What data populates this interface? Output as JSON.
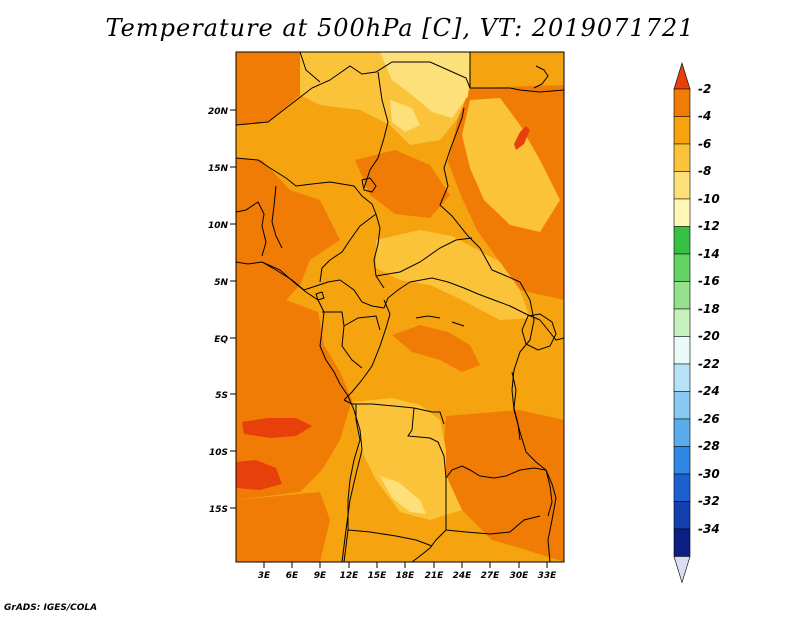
{
  "title": "Temperature at 500hPa [C], VT: 2019071721",
  "footer": "GrADS: IGES/COLA",
  "map": {
    "lat_labels": [
      "20N",
      "15N",
      "10N",
      "5N",
      "EQ",
      "5S",
      "10S",
      "15S"
    ],
    "lon_labels": [
      "3E",
      "6E",
      "9E",
      "12E",
      "15E",
      "18E",
      "21E",
      "24E",
      "27E",
      "30E",
      "33E"
    ]
  },
  "colorbar": {
    "labels": [
      "-2",
      "-4",
      "-6",
      "-8",
      "-10",
      "-12",
      "-14",
      "-16",
      "-18",
      "-20",
      "-22",
      "-24",
      "-26",
      "-28",
      "-30",
      "-32",
      "-34"
    ],
    "colors": [
      "#e8400a",
      "#f07c05",
      "#f5a40f",
      "#fbc33a",
      "#fde07a",
      "#fef7b6",
      "#37c043",
      "#62d262",
      "#94e08c",
      "#c6f1bc",
      "#eafaf8",
      "#b8e2f8",
      "#89c8f2",
      "#5aaced",
      "#2f88e3",
      "#1c5fcf",
      "#1340ac",
      "#0c1f85",
      "#dcdcf5"
    ]
  },
  "colors": {
    "base": "#f5a40f",
    "dark": "#f07c05",
    "light": "#fbc33a",
    "pale": "#fde07a",
    "hot": "#e8400a"
  }
}
